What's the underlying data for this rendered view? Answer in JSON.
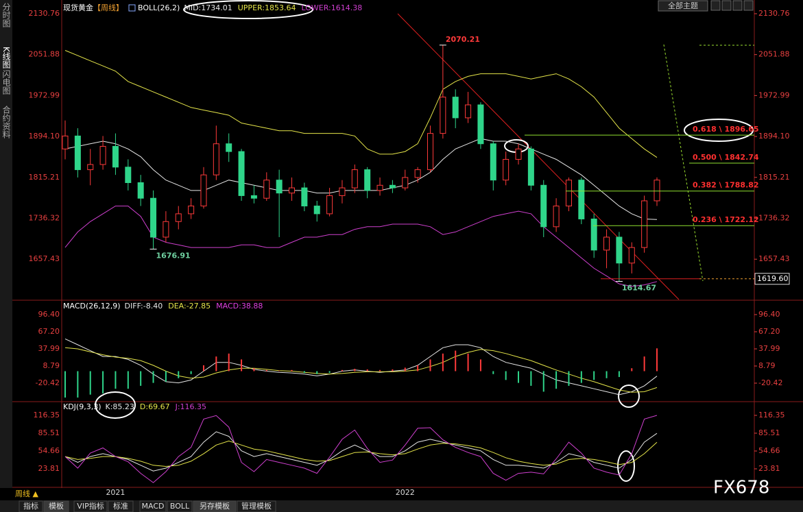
{
  "ui": {
    "side_tabs": [
      "分时图",
      "K线图",
      "闪电图",
      "合约资料"
    ],
    "theme_button": "全部主题",
    "period_button": "周线 ▲",
    "bottom_tabs": [
      "指标",
      "模板",
      "VIP指标",
      "标准",
      "MACD",
      "BOLL",
      "另存模板",
      "管理模板"
    ],
    "watermark": "FX678"
  },
  "chart_data": [
    {
      "type": "candlestick",
      "title": "现货黄金",
      "period": "【周线】",
      "indicator": "BOLL(26,2)",
      "categories": [
        null,
        null,
        null,
        null,
        "2021",
        null,
        null,
        null,
        null,
        null,
        null,
        null,
        null,
        null,
        null,
        null,
        null,
        null,
        null,
        null,
        null,
        null,
        null,
        null,
        null,
        null,
        null,
        "2022",
        null,
        null,
        null,
        null,
        null,
        null,
        null,
        null,
        null,
        null,
        null,
        null,
        null,
        null,
        null,
        null,
        null,
        null,
        null,
        null
      ],
      "open": [
        1870,
        1895,
        1830,
        1840,
        1875,
        1835,
        1805,
        1775,
        1700,
        1730,
        1745,
        1760,
        1820,
        1880,
        1865,
        1780,
        1775,
        1810,
        1785,
        1795,
        1760,
        1745,
        1780,
        1795,
        1830,
        1790,
        1800,
        1795,
        1815,
        1830,
        1900,
        1970,
        1930,
        1955,
        1880,
        1810,
        1850,
        1870,
        1800,
        1720,
        1760,
        1810,
        1735,
        1675,
        1700,
        1650,
        1680,
        1770
      ],
      "high": [
        1925,
        1910,
        1870,
        1895,
        1900,
        1850,
        1820,
        1790,
        1750,
        1760,
        1775,
        1835,
        1915,
        1900,
        1870,
        1800,
        1825,
        1830,
        1815,
        1805,
        1770,
        1795,
        1810,
        1840,
        1835,
        1815,
        1810,
        1830,
        1835,
        1915,
        2070.21,
        1985,
        1980,
        1960,
        1885,
        1865,
        1880,
        1875,
        1810,
        1775,
        1815,
        1815,
        1745,
        1715,
        1710,
        1690,
        1780,
        1815
      ],
      "low": [
        1850,
        1815,
        1800,
        1830,
        1820,
        1790,
        1760,
        1676.91,
        1690,
        1715,
        1735,
        1755,
        1810,
        1845,
        1770,
        1765,
        1770,
        1700,
        1770,
        1750,
        1730,
        1740,
        1765,
        1785,
        1775,
        1780,
        1785,
        1790,
        1805,
        1825,
        1890,
        1910,
        1920,
        1870,
        1790,
        1800,
        1840,
        1790,
        1700,
        1710,
        1750,
        1725,
        1660,
        1640,
        1614.67,
        1630,
        1670,
        1760
      ],
      "close": [
        1895,
        1830,
        1840,
        1875,
        1835,
        1805,
        1775,
        1700,
        1730,
        1745,
        1760,
        1820,
        1880,
        1865,
        1780,
        1775,
        1810,
        1785,
        1795,
        1760,
        1745,
        1780,
        1795,
        1830,
        1790,
        1800,
        1795,
        1815,
        1830,
        1900,
        1970,
        1930,
        1955,
        1880,
        1810,
        1850,
        1870,
        1800,
        1720,
        1760,
        1810,
        1735,
        1675,
        1700,
        1650,
        1680,
        1770,
        1810
      ],
      "up_color": "#ff3a3a",
      "down_color": "#2fd58a",
      "series": [
        {
          "name": "MID:1734.01",
          "color": "#e8e8e8",
          "values": [
            1870,
            1875,
            1880,
            1885,
            1880,
            1870,
            1855,
            1830,
            1810,
            1800,
            1790,
            1790,
            1800,
            1810,
            1805,
            1800,
            1795,
            1790,
            1790,
            1790,
            1785,
            1785,
            1790,
            1790,
            1790,
            1790,
            1795,
            1800,
            1810,
            1825,
            1850,
            1870,
            1880,
            1890,
            1885,
            1885,
            1880,
            1870,
            1860,
            1850,
            1835,
            1820,
            1800,
            1780,
            1760,
            1745,
            1735,
            1734.01
          ]
        },
        {
          "name": "UPPER:1853.64",
          "color": "#e6e64a",
          "values": [
            2060,
            2050,
            2040,
            2030,
            2020,
            2000,
            1990,
            1980,
            1970,
            1960,
            1950,
            1945,
            1940,
            1935,
            1920,
            1915,
            1910,
            1905,
            1905,
            1900,
            1900,
            1900,
            1900,
            1895,
            1870,
            1860,
            1860,
            1865,
            1880,
            1930,
            1985,
            2000,
            2010,
            2015,
            2015,
            2015,
            2010,
            2005,
            2010,
            2015,
            2005,
            1990,
            1970,
            1940,
            1910,
            1890,
            1870,
            1853.64
          ]
        },
        {
          "name": "LOWER:1614.38",
          "color": "#d040d0",
          "values": [
            1680,
            1710,
            1730,
            1745,
            1760,
            1760,
            1740,
            1700,
            1690,
            1685,
            1680,
            1680,
            1680,
            1680,
            1685,
            1685,
            1680,
            1680,
            1690,
            1700,
            1700,
            1705,
            1705,
            1715,
            1720,
            1720,
            1725,
            1725,
            1725,
            1720,
            1705,
            1710,
            1720,
            1730,
            1740,
            1745,
            1750,
            1745,
            1720,
            1700,
            1680,
            1660,
            1640,
            1625,
            1610,
            1605,
            1608,
            1614.38
          ]
        }
      ],
      "annotations": [
        2070.21,
        1676.91,
        1614.67
      ],
      "fib_levels": [
        {
          "value": 1896.65,
          "label": "0.618 \\ 1896.65"
        },
        {
          "value": 1842.74,
          "label": "0.500 \\ 1842.74"
        },
        {
          "value": 1788.82,
          "label": "0.382 \\ 1788.82"
        },
        {
          "value": 1722.12,
          "label": "0.236 \\ 1722.12"
        }
      ],
      "price_line": {
        "value": 1619.6,
        "label": "1619.60"
      },
      "ylim": [
        1579.7,
        2146.6
      ],
      "yticks": [
        2130.76,
        2051.88,
        1972.99,
        {
          "value": 1894.1,
          "label": "1894.10"
        },
        1815.21,
        1736.32,
        1657.43
      ]
    },
    {
      "type": "macd",
      "indicator": "MACD(26,12,9)",
      "series": [
        {
          "name": "DIFF:-8.40",
          "color": "#e8e8e8",
          "style": "line",
          "values": [
            55,
            45,
            35,
            25,
            25,
            20,
            10,
            -5,
            -18,
            -20,
            -15,
            0,
            15,
            15,
            10,
            3,
            0,
            -2,
            -3,
            -5,
            -8,
            -5,
            0,
            2,
            0,
            -2,
            0,
            2,
            10,
            25,
            40,
            45,
            45,
            40,
            25,
            15,
            10,
            5,
            -5,
            -15,
            -20,
            -25,
            -30,
            -35,
            -40,
            -35,
            -25,
            -8.4
          ]
        },
        {
          "name": "DEA:-27.85",
          "color": "#e6e64a",
          "style": "line",
          "values": [
            40,
            38,
            33,
            28,
            24,
            22,
            18,
            10,
            0,
            -8,
            -12,
            -10,
            -3,
            2,
            5,
            5,
            3,
            1,
            0,
            -2,
            -4,
            -5,
            -4,
            -2,
            -1,
            -1,
            -1,
            0,
            2,
            8,
            15,
            25,
            32,
            37,
            35,
            30,
            24,
            18,
            10,
            2,
            -5,
            -12,
            -18,
            -25,
            -32,
            -36,
            -35,
            -27.85
          ]
        },
        {
          "name": "MACD:38.88",
          "color": "#ff3a3a",
          "neg_color": "#2fd58a",
          "legend_color": "#e040e0",
          "style": "bar",
          "values": [
            -45,
            -45,
            -40,
            -38,
            -30,
            -30,
            -25,
            -20,
            -18,
            -12,
            -5,
            10,
            25,
            30,
            20,
            5,
            2,
            1,
            2,
            -3,
            -5,
            -3,
            2,
            4,
            3,
            2,
            3,
            6,
            10,
            20,
            30,
            35,
            30,
            20,
            -5,
            -15,
            -20,
            -25,
            -35,
            -30,
            -25,
            -20,
            -15,
            -12,
            -10,
            5,
            25,
            38.88
          ]
        }
      ],
      "ylim": [
        -50.8,
        118.6
      ],
      "yticks": [
        {
          "value": 96.4,
          "label": "96.40"
        },
        {
          "value": 67.2,
          "label": "67.20"
        },
        37.99,
        8.79,
        -20.42
      ]
    },
    {
      "type": "line",
      "indicator": "KDJ(9,3,3)",
      "series": [
        {
          "name": "K:85.23",
          "color": "#e8e8e8",
          "values": [
            45,
            35,
            45,
            50,
            45,
            40,
            30,
            20,
            25,
            35,
            45,
            70,
            88,
            80,
            55,
            45,
            50,
            45,
            40,
            35,
            30,
            40,
            55,
            65,
            55,
            45,
            45,
            55,
            70,
            75,
            70,
            65,
            60,
            55,
            40,
            30,
            30,
            28,
            25,
            35,
            50,
            45,
            35,
            30,
            25,
            40,
            70,
            85.23
          ]
        },
        {
          "name": "D:69.67",
          "color": "#e6e64a",
          "values": [
            45,
            40,
            42,
            45,
            45,
            42,
            37,
            30,
            28,
            30,
            37,
            50,
            65,
            72,
            65,
            58,
            55,
            50,
            45,
            40,
            37,
            38,
            45,
            52,
            53,
            50,
            48,
            50,
            58,
            65,
            68,
            67,
            64,
            60,
            52,
            43,
            37,
            33,
            30,
            32,
            40,
            42,
            40,
            36,
            31,
            35,
            50,
            69.67
          ]
        },
        {
          "name": "J:116.35",
          "color": "#d040d0",
          "values": [
            45,
            25,
            51,
            60,
            45,
            36,
            16,
            0,
            19,
            45,
            61,
            110,
            116,
            96,
            35,
            19,
            40,
            35,
            30,
            25,
            16,
            44,
            75,
            91,
            59,
            35,
            39,
            65,
            94,
            95,
            74,
            61,
            52,
            45,
            16,
            4,
            16,
            18,
            15,
            41,
            70,
            51,
            25,
            18,
            13,
            50,
            110,
            116.35
          ]
        }
      ],
      "ylim": [
        -7.04,
        138.9
      ],
      "yticks": [
        116.35,
        85.51,
        54.66,
        23.81
      ]
    }
  ]
}
